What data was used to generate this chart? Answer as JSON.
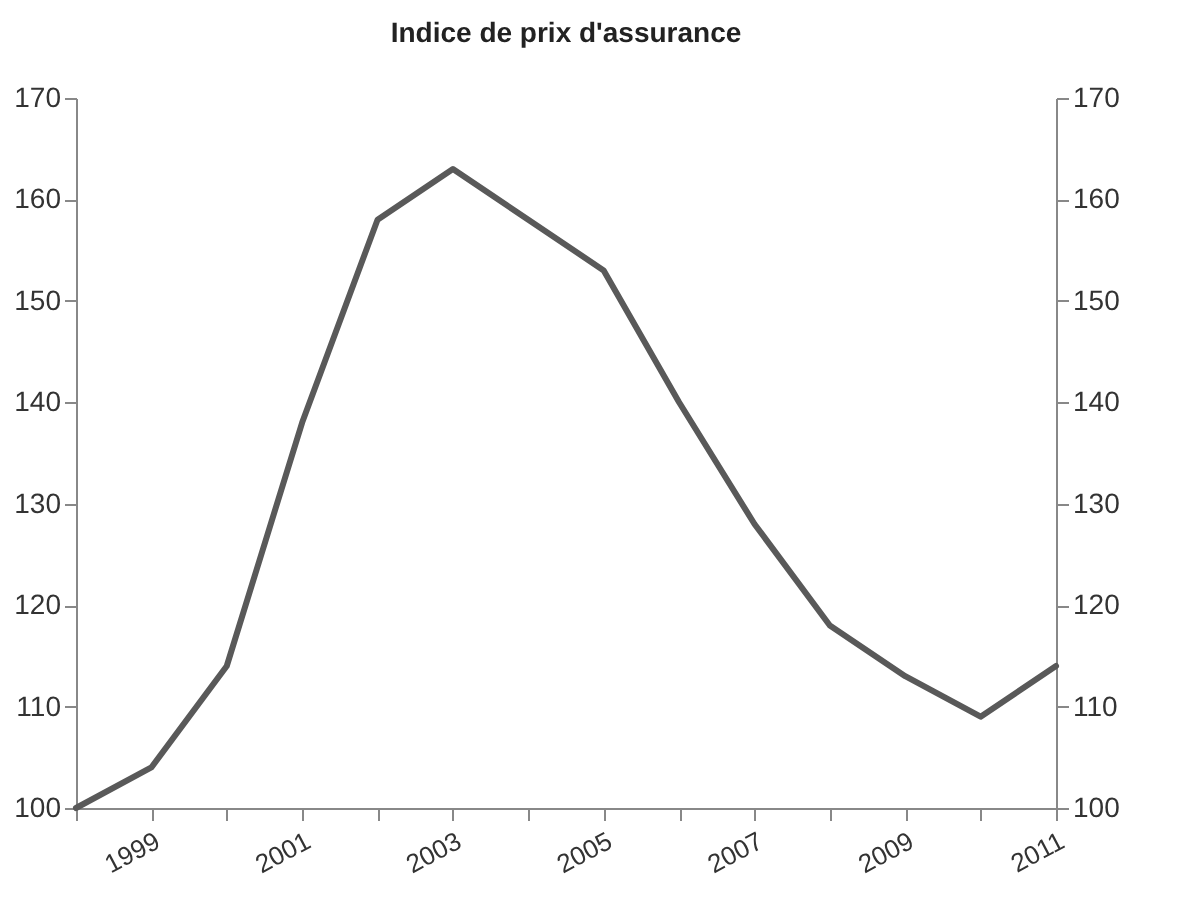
{
  "chart_data": {
    "type": "line",
    "title": "Indice de prix d'assurance",
    "x": [
      1998,
      1999,
      2000,
      2001,
      2002,
      2003,
      2004,
      2005,
      2006,
      2007,
      2008,
      2009,
      2010,
      2011
    ],
    "series": [
      {
        "color": "#595959",
        "values": [
          100,
          104,
          114,
          138,
          158,
          163,
          158,
          153,
          140,
          128,
          118,
          113,
          109,
          114
        ]
      }
    ],
    "xlim": [
      1998,
      2011
    ],
    "xticks": [
      {
        "value": 1998,
        "label": null
      },
      1999,
      {
        "value": 2000,
        "label": null
      },
      2001,
      {
        "value": 2002,
        "label": null
      },
      2003,
      {
        "value": 2004,
        "label": null
      },
      2005,
      {
        "value": 2006,
        "label": null
      },
      2007,
      {
        "value": 2008,
        "label": null
      },
      2009,
      {
        "value": 2010,
        "label": null
      },
      2011
    ],
    "ylim": [
      100,
      170
    ],
    "yticks": [
      100,
      110,
      120,
      130,
      140,
      150,
      160,
      170
    ],
    "y2lim": [
      100,
      170
    ],
    "y2ticks": [
      100,
      110,
      120,
      130,
      140,
      150,
      160,
      170
    ],
    "grid": false,
    "marker": "none",
    "line_style": "solid"
  }
}
